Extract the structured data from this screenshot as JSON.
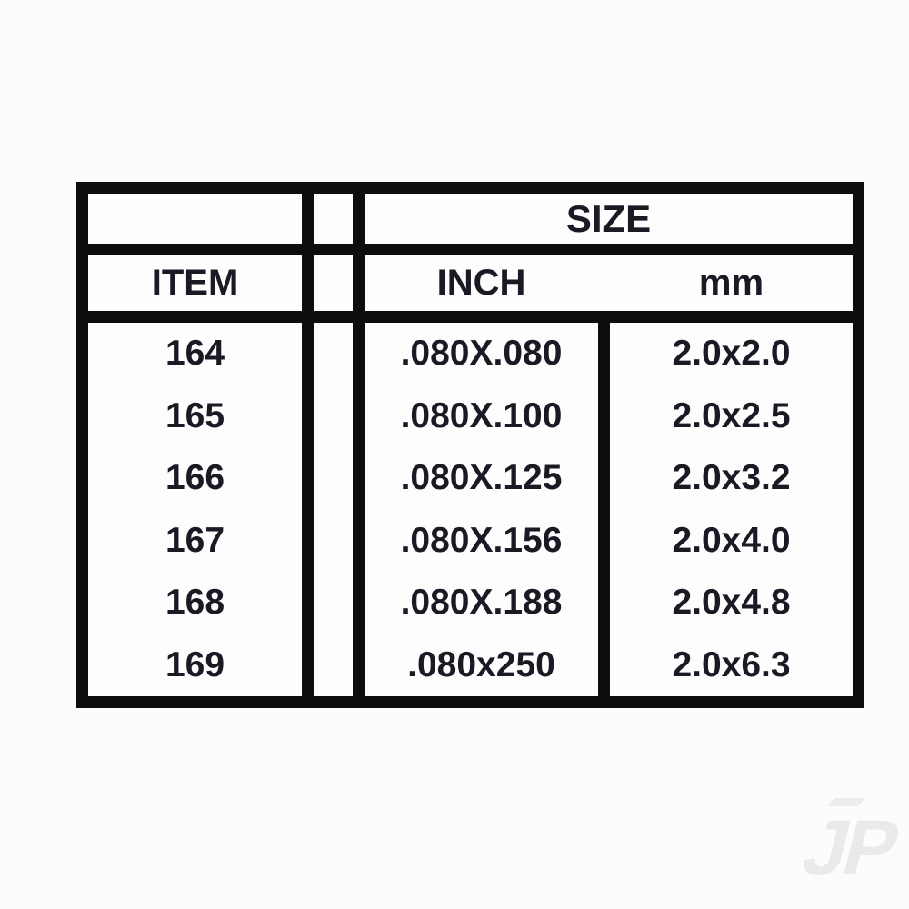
{
  "table": {
    "size_header": "SIZE",
    "item_header": "ITEM",
    "inch_header": "INCH",
    "mm_header": "mm",
    "rows": [
      {
        "item": "164",
        "inch": ".080X.080",
        "mm": "2.0x2.0"
      },
      {
        "item": "165",
        "inch": ".080X.100",
        "mm": "2.0x2.5"
      },
      {
        "item": "166",
        "inch": ".080X.125",
        "mm": "2.0x3.2"
      },
      {
        "item": "167",
        "inch": ".080X.156",
        "mm": "2.0x4.0"
      },
      {
        "item": "168",
        "inch": ".080X.188",
        "mm": "2.0x4.8"
      },
      {
        "item": "169",
        "inch": ".080x250",
        "mm": "2.0x6.3"
      }
    ]
  },
  "watermark": {
    "label": "JP"
  },
  "colors": {
    "line": "#0d0d0d",
    "text": "#1a1a24",
    "background": "#fcfcfc",
    "watermark": "#eaeaea"
  }
}
